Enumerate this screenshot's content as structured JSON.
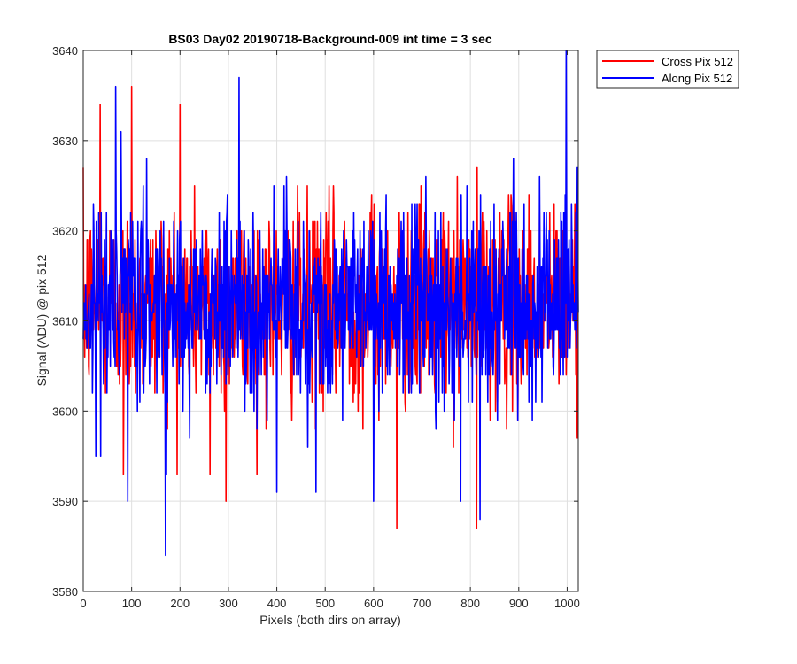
{
  "chart_data": {
    "type": "line",
    "title": "BS03 Day02 20190718-Background-009 int time = 3 sec",
    "xlabel": "Pixels (both dirs on array)",
    "ylabel": "Signal (ADU) @ pix 512",
    "xlim": [
      0,
      1023
    ],
    "ylim": [
      3580,
      3640
    ],
    "xticks": [
      0,
      100,
      200,
      300,
      400,
      500,
      600,
      700,
      800,
      900,
      1000
    ],
    "yticks": [
      3580,
      3590,
      3600,
      3610,
      3620,
      3630,
      3640
    ],
    "grid": true,
    "legend_location": "outside top-right",
    "n_points": 1024,
    "series": [
      {
        "name": "Cross Pix 512",
        "color": "#ff0000",
        "typical_mean": 3612,
        "typical_std": 5.5,
        "extremes": [
          [
            35,
            3634
          ],
          [
            100,
            3636
          ],
          [
            200,
            3634
          ],
          [
            83,
            3593
          ],
          [
            262,
            3593
          ],
          [
            295,
            3590
          ],
          [
            648,
            3587
          ],
          [
            813,
            3587
          ],
          [
            1020,
            3602
          ]
        ]
      },
      {
        "name": "Along Pix 512",
        "color": "#0000ff",
        "typical_mean": 3612,
        "typical_std": 5.5,
        "extremes": [
          [
            67,
            3636
          ],
          [
            322,
            3637
          ],
          [
            998,
            3640
          ],
          [
            170,
            3584
          ],
          [
            820,
            3588
          ],
          [
            92,
            3590
          ],
          [
            400,
            3591
          ],
          [
            481,
            3591
          ],
          [
            600,
            3590
          ],
          [
            780,
            3590
          ]
        ]
      }
    ]
  }
}
